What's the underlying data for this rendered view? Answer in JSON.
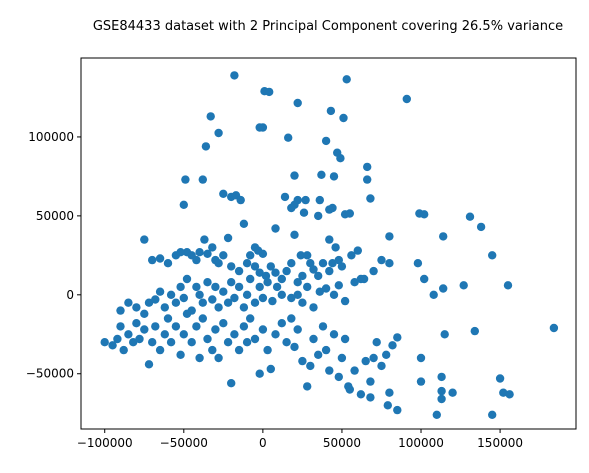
{
  "chart_data": {
    "type": "scatter",
    "title": "GSE84433 dataset with 2 Principal Component covering 26.5% variance",
    "xlabel": "",
    "ylabel": "",
    "xlim": [
      -115000,
      198000
    ],
    "ylim": [
      -85000,
      150000
    ],
    "xticks": [
      -100000,
      -50000,
      0,
      50000,
      100000,
      150000
    ],
    "xtick_labels": [
      "−100000",
      "−50000",
      "0",
      "50000",
      "100000",
      "150000"
    ],
    "yticks": [
      -50000,
      0,
      50000,
      100000
    ],
    "ytick_labels": [
      "−50000",
      "0",
      "50000",
      "100000"
    ],
    "grid": false,
    "marker_color": "#1f77b4",
    "points": [
      [
        -18000,
        139000
      ],
      [
        1000,
        129000
      ],
      [
        4000,
        128500
      ],
      [
        53000,
        136500
      ],
      [
        91000,
        124000
      ],
      [
        22000,
        121500
      ],
      [
        43000,
        116500
      ],
      [
        -33000,
        113000
      ],
      [
        51000,
        112000
      ],
      [
        -28000,
        102500
      ],
      [
        0,
        106000
      ],
      [
        -2000,
        106000
      ],
      [
        16000,
        99500
      ],
      [
        -36000,
        94000
      ],
      [
        40000,
        97500
      ],
      [
        47000,
        90000
      ],
      [
        49000,
        86500
      ],
      [
        66000,
        81000
      ],
      [
        66000,
        73000
      ],
      [
        -49000,
        73000
      ],
      [
        -38000,
        73000
      ],
      [
        37000,
        76000
      ],
      [
        45000,
        75000
      ],
      [
        20000,
        75500
      ],
      [
        36000,
        60000
      ],
      [
        -25000,
        64000
      ],
      [
        -20000,
        62000
      ],
      [
        -17000,
        63000
      ],
      [
        14000,
        62000
      ],
      [
        22000,
        60000
      ],
      [
        27000,
        60000
      ],
      [
        20000,
        57000
      ],
      [
        18000,
        55000
      ],
      [
        -14000,
        60000
      ],
      [
        -50000,
        57000
      ],
      [
        44000,
        55000
      ],
      [
        42000,
        54000
      ],
      [
        68000,
        61000
      ],
      [
        26000,
        52000
      ],
      [
        35000,
        50000
      ],
      [
        52000,
        51000
      ],
      [
        55000,
        51500
      ],
      [
        -12000,
        45000
      ],
      [
        99000,
        51500
      ],
      [
        102000,
        51000
      ],
      [
        131000,
        49500
      ],
      [
        138000,
        43000
      ],
      [
        8000,
        42000
      ],
      [
        -22000,
        36000
      ],
      [
        -37000,
        35000
      ],
      [
        -40000,
        27000
      ],
      [
        -48000,
        27000
      ],
      [
        -5000,
        30000
      ],
      [
        0,
        26000
      ],
      [
        -3000,
        28000
      ],
      [
        20000,
        38000
      ],
      [
        24000,
        25000
      ],
      [
        28000,
        25000
      ],
      [
        -75000,
        35000
      ],
      [
        -70000,
        22000
      ],
      [
        -65000,
        23000
      ],
      [
        -60000,
        20000
      ],
      [
        -55000,
        25000
      ],
      [
        -52000,
        27000
      ],
      [
        -45000,
        25000
      ],
      [
        -42000,
        22000
      ],
      [
        -35000,
        26000
      ],
      [
        -32000,
        30000
      ],
      [
        -30000,
        22000
      ],
      [
        -28000,
        20000
      ],
      [
        -25000,
        25000
      ],
      [
        -20000,
        18000
      ],
      [
        -15000,
        15000
      ],
      [
        -10000,
        20000
      ],
      [
        -8000,
        25000
      ],
      [
        -5000,
        18000
      ],
      [
        -2000,
        14000
      ],
      [
        2000,
        12000
      ],
      [
        5000,
        18000
      ],
      [
        8000,
        14000
      ],
      [
        12000,
        10000
      ],
      [
        15000,
        15000
      ],
      [
        18000,
        20000
      ],
      [
        22000,
        8000
      ],
      [
        25000,
        12000
      ],
      [
        30000,
        20000
      ],
      [
        32000,
        16000
      ],
      [
        35000,
        12000
      ],
      [
        38000,
        20000
      ],
      [
        42000,
        15000
      ],
      [
        44000,
        20000
      ],
      [
        48000,
        22000
      ],
      [
        50000,
        18000
      ],
      [
        42000,
        35000
      ],
      [
        46000,
        30000
      ],
      [
        56000,
        25000
      ],
      [
        60000,
        28000
      ],
      [
        62000,
        10000
      ],
      [
        70000,
        15000
      ],
      [
        75000,
        22000
      ],
      [
        80000,
        37000
      ],
      [
        80000,
        20000
      ],
      [
        98000,
        20000
      ],
      [
        102000,
        10000
      ],
      [
        108000,
        0
      ],
      [
        114000,
        4000
      ],
      [
        114000,
        37000
      ],
      [
        127000,
        6000
      ],
      [
        145000,
        25000
      ],
      [
        155000,
        6000
      ],
      [
        -90000,
        -10000
      ],
      [
        -85000,
        -5000
      ],
      [
        -80000,
        -8000
      ],
      [
        -75000,
        -12000
      ],
      [
        -72000,
        -5000
      ],
      [
        -68000,
        -3000
      ],
      [
        -65000,
        2000
      ],
      [
        -62000,
        -8000
      ],
      [
        -58000,
        0
      ],
      [
        -55000,
        -5000
      ],
      [
        -52000,
        5000
      ],
      [
        -50000,
        -2000
      ],
      [
        -48000,
        10000
      ],
      [
        -45000,
        -10000
      ],
      [
        -42000,
        5000
      ],
      [
        -40000,
        0
      ],
      [
        -38000,
        -5000
      ],
      [
        -35000,
        8000
      ],
      [
        -32000,
        -3000
      ],
      [
        -30000,
        5000
      ],
      [
        -28000,
        -8000
      ],
      [
        -25000,
        2000
      ],
      [
        -22000,
        -5000
      ],
      [
        -20000,
        8000
      ],
      [
        -18000,
        -2000
      ],
      [
        -15000,
        5000
      ],
      [
        -12000,
        -8000
      ],
      [
        -10000,
        0
      ],
      [
        -8000,
        10000
      ],
      [
        -5000,
        -5000
      ],
      [
        -2000,
        5000
      ],
      [
        0,
        -2000
      ],
      [
        3000,
        8000
      ],
      [
        6000,
        -4000
      ],
      [
        9000,
        5000
      ],
      [
        12000,
        0
      ],
      [
        18000,
        -2000
      ],
      [
        22000,
        0
      ],
      [
        25000,
        -5000
      ],
      [
        28000,
        5000
      ],
      [
        32000,
        -8000
      ],
      [
        36000,
        2000
      ],
      [
        40000,
        4000
      ],
      [
        45000,
        0
      ],
      [
        48000,
        6000
      ],
      [
        52000,
        -4000
      ],
      [
        58000,
        8000
      ],
      [
        64000,
        10000
      ],
      [
        -100000,
        -30000
      ],
      [
        -95000,
        -32000
      ],
      [
        -92000,
        -28000
      ],
      [
        -90000,
        -20000
      ],
      [
        -88000,
        -35000
      ],
      [
        -85000,
        -25000
      ],
      [
        -82000,
        -30000
      ],
      [
        -80000,
        -18000
      ],
      [
        -78000,
        -28000
      ],
      [
        -75000,
        -22000
      ],
      [
        -72000,
        -44000
      ],
      [
        -70000,
        -30000
      ],
      [
        -68000,
        -20000
      ],
      [
        -65000,
        -35000
      ],
      [
        -62000,
        -25000
      ],
      [
        -60000,
        -15000
      ],
      [
        -58000,
        -30000
      ],
      [
        -55000,
        -20000
      ],
      [
        -52000,
        -38000
      ],
      [
        -50000,
        -25000
      ],
      [
        -48000,
        -12000
      ],
      [
        -45000,
        -30000
      ],
      [
        -42000,
        -20000
      ],
      [
        -40000,
        -40000
      ],
      [
        -38000,
        -15000
      ],
      [
        -35000,
        -28000
      ],
      [
        -32000,
        -35000
      ],
      [
        -30000,
        -22000
      ],
      [
        -28000,
        -40000
      ],
      [
        -25000,
        -18000
      ],
      [
        -22000,
        -30000
      ],
      [
        -20000,
        -56000
      ],
      [
        -18000,
        -25000
      ],
      [
        -15000,
        -35000
      ],
      [
        -12000,
        -20000
      ],
      [
        -10000,
        -30000
      ],
      [
        -8000,
        -15000
      ],
      [
        -5000,
        -28000
      ],
      [
        -2000,
        -50000
      ],
      [
        0,
        -22000
      ],
      [
        3000,
        -35000
      ],
      [
        5000,
        -47000
      ],
      [
        8000,
        -25000
      ],
      [
        12000,
        -18000
      ],
      [
        15000,
        -30000
      ],
      [
        18000,
        -15000
      ],
      [
        20000,
        -33000
      ],
      [
        22000,
        -22000
      ],
      [
        25000,
        -42000
      ],
      [
        28000,
        -58000
      ],
      [
        30000,
        -45000
      ],
      [
        32000,
        -28000
      ],
      [
        35000,
        -38000
      ],
      [
        38000,
        -20000
      ],
      [
        40000,
        -35000
      ],
      [
        42000,
        -48000
      ],
      [
        45000,
        -25000
      ],
      [
        48000,
        -52000
      ],
      [
        50000,
        -40000
      ],
      [
        52000,
        -28000
      ],
      [
        55000,
        -60000
      ],
      [
        58000,
        -48000
      ],
      [
        62000,
        -63000
      ],
      [
        65000,
        -42000
      ],
      [
        68000,
        -55000
      ],
      [
        70000,
        -40000
      ],
      [
        72000,
        -30000
      ],
      [
        75000,
        -45000
      ],
      [
        78000,
        -38000
      ],
      [
        80000,
        -62000
      ],
      [
        82000,
        -32000
      ],
      [
        85000,
        -73000
      ],
      [
        68000,
        -65000
      ],
      [
        79000,
        -70000
      ],
      [
        100000,
        -40000
      ],
      [
        100000,
        -55000
      ],
      [
        110000,
        -76000
      ],
      [
        113000,
        -52000
      ],
      [
        113000,
        -61000
      ],
      [
        113000,
        -66000
      ],
      [
        120000,
        -62000
      ],
      [
        115000,
        -25000
      ],
      [
        134000,
        -23000
      ],
      [
        145000,
        -76000
      ],
      [
        150000,
        -53000
      ],
      [
        152000,
        -62000
      ],
      [
        156000,
        -63000
      ],
      [
        184000,
        -21000
      ],
      [
        85000,
        -27000
      ],
      [
        54000,
        -58000
      ]
    ]
  }
}
